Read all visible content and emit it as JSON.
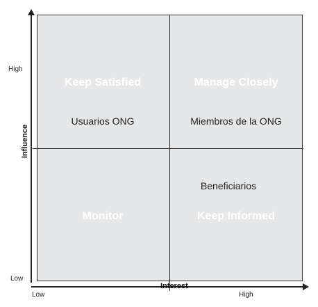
{
  "quadrants": {
    "top_left": {
      "title": "Keep Satisfied",
      "stakeholders": [
        "Usuarios ONG"
      ]
    },
    "top_right": {
      "title": "Manage Closely",
      "stakeholders": [
        "Miembros de la ONG"
      ]
    },
    "bottom_left": {
      "title": "Monitor",
      "stakeholders": []
    },
    "bottom_right": {
      "title": "Keep Informed",
      "stakeholders": [
        "Beneficiarios"
      ]
    }
  },
  "y_axis": {
    "title": "Influence",
    "high": "High",
    "low": "Low"
  },
  "x_axis": {
    "title": "Interest",
    "low": "Low",
    "high": "High"
  },
  "colors": {
    "quadrant_fill": "#e6e7e8",
    "title_text": "#ffffff",
    "lines": "#222222"
  }
}
